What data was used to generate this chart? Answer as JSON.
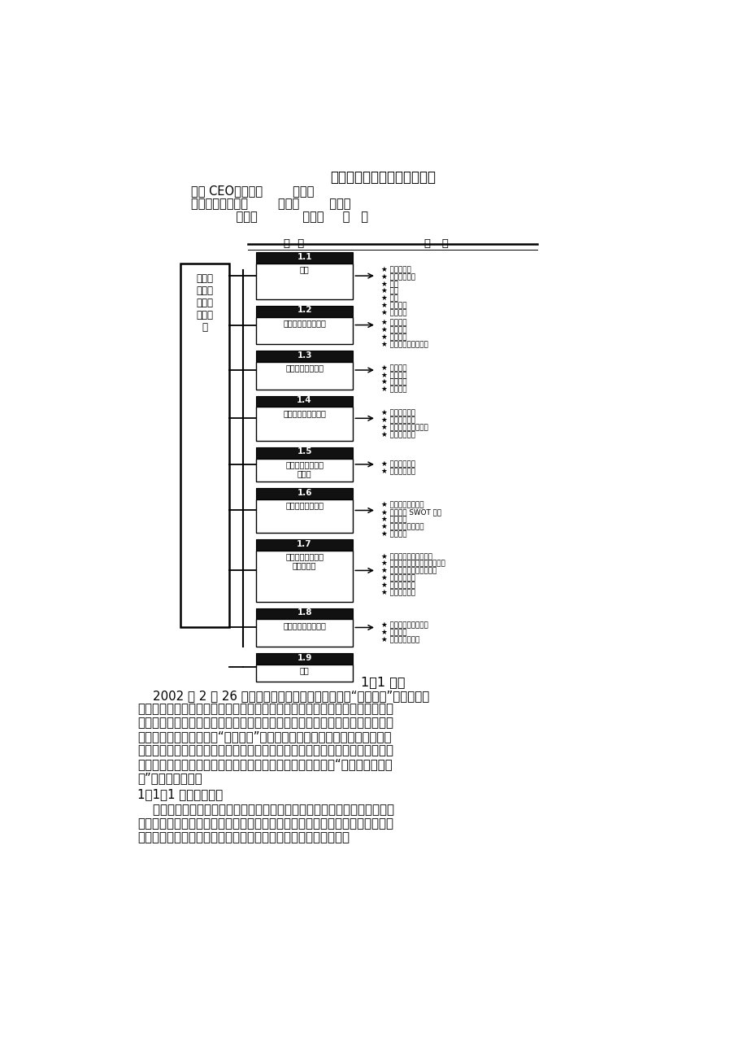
{
  "title": "百福餐饮管理集团商业计划书",
  "header_line1": "团队 CEO：杜雪梅        刘秀峰",
  "header_line2": "团队成员：杜雪梅        刘秀峰        孙燕平",
  "header_line3": "            夏晓蓉            宋德育     吴   茊",
  "table_col1": "章  节",
  "table_col2": "内   容",
  "left_box_text": "百福餐\n饮管理\n集团商\n业计划\n书",
  "sections": [
    {
      "num": "1.1",
      "title": "概要",
      "title_multiline": false,
      "items": [
        "产品和服务",
        "目标市场定位",
        "竞争",
        "管理",
        "战略",
        "财务分析",
        "风险分析"
      ]
    },
    {
      "num": "1.2",
      "title": "战略规划及创新理念",
      "title_multiline": false,
      "items": [
        "经营陈述",
        "战略目标",
        "创新理念",
        "经济效益和社会效益"
      ]
    },
    {
      "num": "1.3",
      "title": "战略制定背景分析",
      "title_multiline": false,
      "items": [
        "川菜优势",
        "战略背景",
        "战略分析",
        "战略制定"
      ]
    },
    {
      "num": "1.4",
      "title": "市场与竞争形势分析",
      "title_multiline": false,
      "items": [
        "市场机会分析",
        "目标市场细分",
        "加盟企业选择与分析",
        "竞争形势分析"
      ]
    },
    {
      "num": "1.5",
      "title": "公司管理模式与组\n织结构",
      "title_multiline": true,
      "items": [
        "公司管理模式",
        "公司组织结构"
      ]
    },
    {
      "num": "1.6",
      "title": "市场营销策划方案",
      "title_multiline": false,
      "items": [
        "当前营销环境分析",
        "餐饮市场 SWOT 分析",
        "营销目标",
        "企业文化营销步骤",
        "营销战略"
      ]
    },
    {
      "num": "1.7",
      "title": "公司人力资源管理\n及企业文化",
      "title_multiline": true,
      "items": [
        "公司各级人事管理权限",
        "连锁集团企业员工的素质要求",
        "集团企业员工招聘与培训",
        "员工绩效考核",
        "员工激励管理",
        "公司企业文化"
      ]
    },
    {
      "num": "1.8",
      "title": "财务分析与融资决策",
      "title_multiline": false,
      "items": [
        "投资规模及资本结构",
        "财务计划",
        "财务风险及对策"
      ]
    },
    {
      "num": "1.9",
      "title": "附录",
      "title_multiline": false,
      "items": []
    }
  ],
  "section_heading": "1．1 概要",
  "para1": "    2002 年 2 月 26 日《华西都市报》一篇《倘力打造“川菜王国”》的文章见报后，引起了社会各界的强烈反响，省市政府、新闻媒体、知名川菜企业、学术界以及相关行业纷纷展开了一场关于如何发展川菜的轰轰烈烈的大讨论。在这样的背景下，本着积极推进“川菜王国”宏观战略的初蝿，考虑到既要作为更深层次的理论研究，又要具有商业运作的可操作性和时效性，并在充分市场调研的基础上，我们运用现代管理理论和管理技术，提出了一套完整的“百福餐饮管理集团”商业运作计划。",
  "subheading": "1．1．1 产品和和服务",
  "para2": "    本项目拟创建的百福餐饮管理集团是一家股份制企业，它将通过现代化的管理，实现对社会资源的整合和共振，在全国乃至全球建立连锁川菜酒楼，为特定的客户群提供特色鲜明、个性突出的餐饮服务，并以此获取利润。",
  "bg_color": "#ffffff"
}
